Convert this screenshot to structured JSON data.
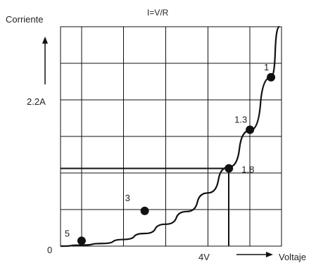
{
  "chart_data": {
    "type": "line",
    "title": "I=V/R",
    "ylabel": "Corriente",
    "xlabel": "Voltaje",
    "xlim": [
      0,
      5.25
    ],
    "ylim": [
      0,
      3.3
    ],
    "grid": true,
    "tick_labels": {
      "y_origin": "0",
      "y_marker": "2.2A",
      "x_marker": "4V"
    },
    "curve": {
      "x": [
        0,
        0.5,
        1,
        1.5,
        2,
        2.5,
        3,
        3.5,
        4,
        4.5,
        5,
        5.2
      ],
      "y": [
        0.0,
        0.015,
        0.04,
        0.1,
        0.19,
        0.33,
        0.52,
        0.8,
        1.19,
        1.74,
        2.54,
        3.3
      ]
    },
    "points": [
      {
        "label": "5",
        "x": 0.5,
        "y": 0.08
      },
      {
        "label": "3",
        "x": 2.0,
        "y": 0.53
      },
      {
        "label": "1.8",
        "x": 4.0,
        "y": 1.17
      },
      {
        "label": "1.3",
        "x": 4.5,
        "y": 1.75
      },
      {
        "label": "1",
        "x": 5.0,
        "y": 2.54
      }
    ],
    "guide": {
      "x": 4.0,
      "y": 1.17
    }
  }
}
